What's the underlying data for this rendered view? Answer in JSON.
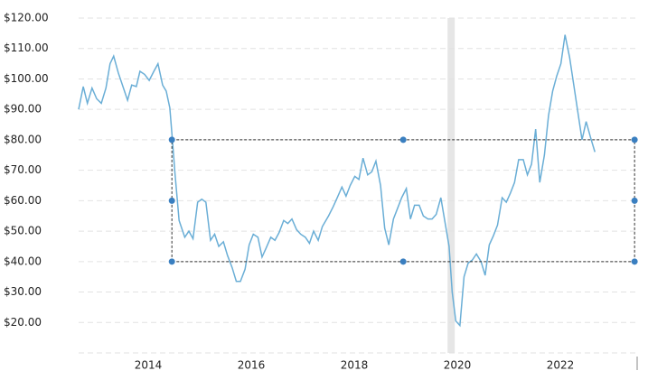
{
  "chart_data": {
    "type": "line",
    "x": [
      2012.65,
      2012.74,
      2012.82,
      2012.91,
      2013.0,
      2013.09,
      2013.18,
      2013.26,
      2013.33,
      2013.42,
      2013.53,
      2013.6,
      2013.68,
      2013.77,
      2013.84,
      2013.93,
      2014.02,
      2014.11,
      2014.19,
      2014.28,
      2014.35,
      2014.42,
      2014.47,
      2014.52,
      2014.6,
      2014.71,
      2014.79,
      2014.87,
      2014.96,
      2015.04,
      2015.12,
      2015.21,
      2015.29,
      2015.37,
      2015.46,
      2015.54,
      2015.63,
      2015.71,
      2015.79,
      2015.88,
      2015.96,
      2016.04,
      2016.13,
      2016.21,
      2016.29,
      2016.38,
      2016.46,
      2016.54,
      2016.63,
      2016.71,
      2016.79,
      2016.88,
      2016.96,
      2017.05,
      2017.13,
      2017.21,
      2017.3,
      2017.38,
      2017.5,
      2017.59,
      2017.67,
      2017.76,
      2017.84,
      2017.92,
      2018.01,
      2018.09,
      2018.17,
      2018.26,
      2018.34,
      2018.42,
      2018.51,
      2018.59,
      2018.67,
      2018.76,
      2018.84,
      2018.92,
      2019.01,
      2019.09,
      2019.17,
      2019.26,
      2019.34,
      2019.43,
      2019.51,
      2019.59,
      2019.68,
      2019.76,
      2019.84,
      2019.9,
      2019.97,
      2020.05,
      2020.13,
      2020.21,
      2020.29,
      2020.37,
      2020.46,
      2020.54,
      2020.62,
      2020.7,
      2020.78,
      2020.87,
      2020.95,
      2021.03,
      2021.11,
      2021.19,
      2021.28,
      2021.36,
      2021.44,
      2021.52,
      2021.6,
      2021.69,
      2021.77,
      2021.85,
      2021.93,
      2022.01,
      2022.09,
      2022.18,
      2022.26,
      2022.34,
      2022.42,
      2022.5,
      2022.59,
      2022.67
    ],
    "series": [
      {
        "color": "#6aaed6",
        "values": [
          90,
          97.5,
          92,
          97,
          93.5,
          92,
          97,
          105,
          107.5,
          102,
          96.5,
          93,
          98,
          97.5,
          102.5,
          101.5,
          99.5,
          102.5,
          105,
          98,
          96,
          90.5,
          80,
          69,
          53.5,
          48,
          50,
          47.5,
          59.5,
          60.5,
          59.5,
          47,
          49,
          45,
          46.5,
          42,
          38,
          33.5,
          33.5,
          37.5,
          45.5,
          49,
          48,
          41.5,
          44.5,
          48,
          47,
          49.5,
          53.5,
          52.5,
          54,
          50.5,
          49,
          48,
          46,
          50,
          47,
          51.5,
          55,
          58,
          61,
          64.5,
          61.5,
          65,
          68,
          67,
          74,
          68.5,
          69.5,
          73,
          65,
          51,
          45.5,
          54,
          57.5,
          61,
          64,
          54,
          58.5,
          58.5,
          55,
          54,
          54,
          55.5,
          61,
          53,
          45,
          30,
          20.5,
          19,
          35,
          39.5,
          40.5,
          42.5,
          40,
          35.5,
          45.5,
          48.5,
          52,
          61,
          59.5,
          62.5,
          66,
          73.5,
          73.5,
          68.5,
          72,
          83.5,
          66,
          75,
          88,
          96,
          101,
          105,
          114.5,
          107,
          98,
          89,
          80,
          86,
          80.5,
          76
        ]
      }
    ],
    "xlim": [
      2012.65,
      2023.49
    ],
    "xticks": [
      2014,
      2016,
      2018,
      2020,
      2022
    ],
    "ylim": [
      10,
      120
    ],
    "yticks": [
      {
        "value": 20,
        "label": "$20.00"
      },
      {
        "value": 30,
        "label": "$30.00"
      },
      {
        "value": 40,
        "label": "$40.00"
      },
      {
        "value": 50,
        "label": "$50.00"
      },
      {
        "value": 60,
        "label": "$60.00"
      },
      {
        "value": 70,
        "label": "$70.00"
      },
      {
        "value": 80,
        "label": "$80.00"
      },
      {
        "value": 90,
        "label": "$90.00"
      },
      {
        "value": 100,
        "label": "$100.00"
      },
      {
        "value": 110,
        "label": "$110.00"
      },
      {
        "value": 120,
        "label": "$120.00"
      }
    ],
    "grid": true,
    "shaded": [
      2019.81,
      2019.95
    ],
    "selection": {
      "x": [
        2014.46,
        2018.95,
        2023.44
      ],
      "y": [
        40,
        60,
        80
      ]
    }
  }
}
